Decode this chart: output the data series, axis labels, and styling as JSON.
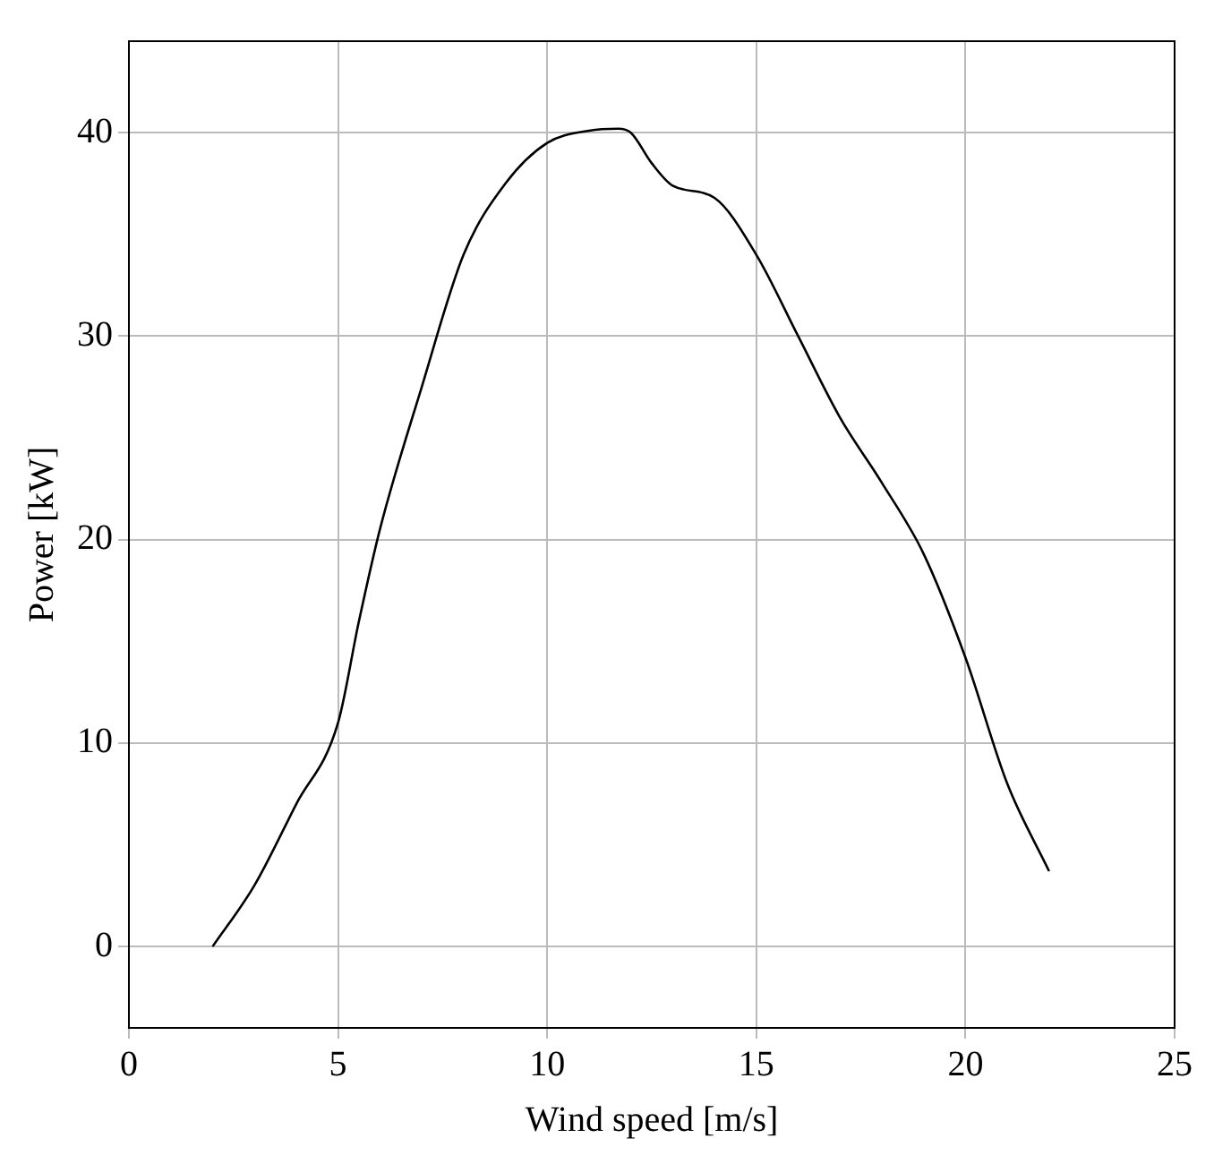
{
  "chart_data": {
    "type": "line",
    "xlabel": "Wind speed [m/s]",
    "ylabel": "Power [kW]",
    "x": [
      2,
      3,
      4,
      5,
      5.5,
      6,
      7,
      8,
      9,
      10,
      11,
      11.7,
      12,
      12.5,
      13,
      14,
      15,
      16,
      17,
      18,
      19,
      20,
      21,
      22
    ],
    "series": [
      {
        "color": "#000000",
        "values": [
          0,
          3,
          7,
          11,
          16,
          20.5,
          27.5,
          34,
          37.5,
          39.5,
          40.1,
          40.2,
          40,
          38.5,
          37.4,
          36.8,
          34,
          30,
          26,
          22.8,
          19.3,
          14.2,
          8,
          3.7
        ]
      }
    ],
    "xlim": [
      0,
      25
    ],
    "xticks": [
      0,
      5,
      10,
      15,
      20,
      25
    ],
    "ylim": [
      -4,
      44.5
    ],
    "yticks": [
      0,
      10,
      20,
      30,
      40
    ],
    "grid": true,
    "legend": false,
    "marker": "none",
    "line_style": "solid"
  }
}
